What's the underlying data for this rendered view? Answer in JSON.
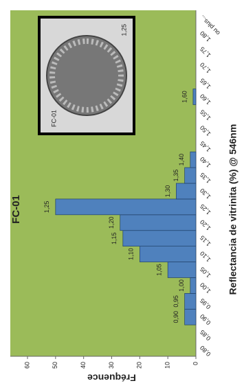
{
  "chart_data": {
    "type": "bar",
    "title": "FC-01",
    "x_label": "Reflectancia de vitrinita (%) @ 546nm",
    "y_label": "Fréquence",
    "categories": [
      "0,80",
      "0,85",
      "0,90",
      "0,95",
      "1,00",
      "1,05",
      "1,10",
      "1,15",
      "1,20",
      "1,25",
      "1,30",
      "1,35",
      "1,40",
      "1,45",
      "1,50",
      "1,55",
      "1,60",
      "1,65",
      "1,70",
      "1,75",
      "1,80",
      "ou plus..."
    ],
    "values": [
      0,
      0,
      4,
      4,
      2,
      10,
      20,
      26,
      27,
      50,
      7,
      4,
      2,
      0,
      0,
      0,
      1,
      0,
      0,
      0,
      0,
      0
    ],
    "color": "#4f81bd",
    "background": "#9bbb59",
    "ylim": [
      0,
      60
    ],
    "yticks": [
      0,
      10,
      20,
      30,
      40,
      50,
      60
    ],
    "inset_texts": [
      "FC-01",
      "1,25"
    ]
  }
}
